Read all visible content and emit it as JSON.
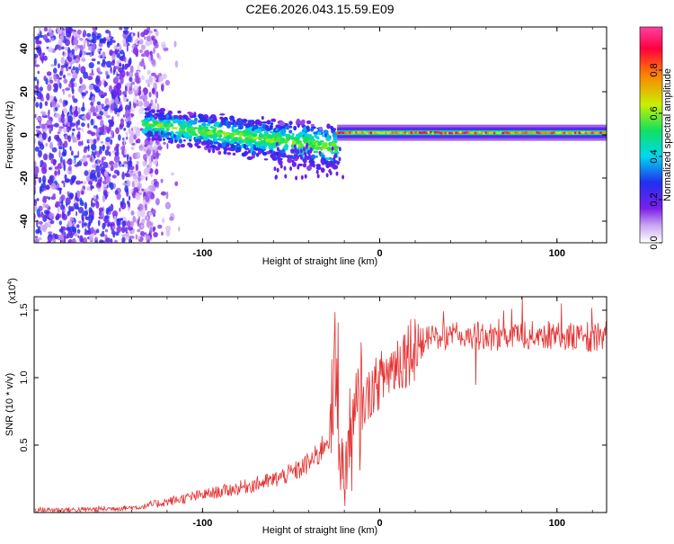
{
  "title": "C2E6.2026.043.15.59.E09",
  "chart_data": [
    {
      "type": "heatmap",
      "name": "spectrogram",
      "xlabel": "Height of straight line (km)",
      "ylabel": "Frequency (Hz)",
      "xlim": [
        -195,
        128
      ],
      "ylim": [
        -50,
        50
      ],
      "xticks": [
        -100,
        0,
        100
      ],
      "xtick_labels": [
        "-100",
        "0",
        "100"
      ],
      "yticks": [
        -40,
        -20,
        0,
        20,
        40
      ],
      "ytick_labels": [
        "-40",
        "-20",
        "0",
        "20",
        "40"
      ],
      "colorbar": {
        "label": "Normalized spectral amplitude",
        "range": [
          0,
          1
        ],
        "ticks": [
          0.0,
          0.2,
          0.4,
          0.6,
          0.8
        ],
        "tick_labels": [
          "0.0",
          "0.2",
          "0.4",
          "0.6",
          "0.8"
        ],
        "colors": [
          "#ffffff",
          "#c9a6f2",
          "#7a1fe8",
          "#2030f0",
          "#00d8f0",
          "#10e060",
          "#c8f000",
          "#ff8000",
          "#ff0040",
          "#ff40a0"
        ]
      },
      "regions": [
        {
          "description": "scattered noise",
          "x": [
            -195,
            -125
          ],
          "freq": [
            -50,
            50
          ],
          "amplitude": [
            0.05,
            0.3
          ]
        },
        {
          "description": "signal band",
          "x": [
            -133,
            -24
          ],
          "center_freq": [
            5,
            -6
          ],
          "amplitude": [
            0.2,
            0.6
          ]
        },
        {
          "description": "stable tone",
          "x": [
            -24,
            128
          ],
          "center_freq": [
            1,
            1
          ],
          "amplitude": [
            0.6,
            0.95
          ]
        }
      ]
    },
    {
      "type": "line",
      "name": "snr",
      "xlabel": "Height of straight line (km)",
      "ylabel": "SNR (10 * v/v)",
      "y_multiplier_label": "(x10",
      "y_multiplier_exp": "4",
      "y_multiplier_close": ")",
      "xlim": [
        -195,
        128
      ],
      "ylim": [
        0,
        1.6
      ],
      "xticks": [
        -100,
        0,
        100
      ],
      "xtick_labels": [
        "-100",
        "0",
        "100"
      ],
      "yticks": [
        0.5,
        1.0,
        1.5
      ],
      "ytick_labels": [
        "0.5",
        "1.0",
        "1.5"
      ],
      "color": "#e53030",
      "series": [
        {
          "name": "SNR",
          "x": [
            -195,
            -170,
            -150,
            -135,
            -120,
            -100,
            -80,
            -60,
            -45,
            -35,
            -28,
            -24,
            -22,
            -20,
            -18,
            -14,
            -10,
            -5,
            0,
            10,
            20,
            30,
            50,
            70,
            90,
            110,
            128
          ],
          "y": [
            0.02,
            0.02,
            0.03,
            0.04,
            0.08,
            0.13,
            0.18,
            0.24,
            0.32,
            0.42,
            0.6,
            1.1,
            0.45,
            0.2,
            0.5,
            0.62,
            0.78,
            0.9,
            0.98,
            1.12,
            1.25,
            1.3,
            1.31,
            1.3,
            1.32,
            1.3,
            1.27
          ]
        }
      ]
    }
  ]
}
